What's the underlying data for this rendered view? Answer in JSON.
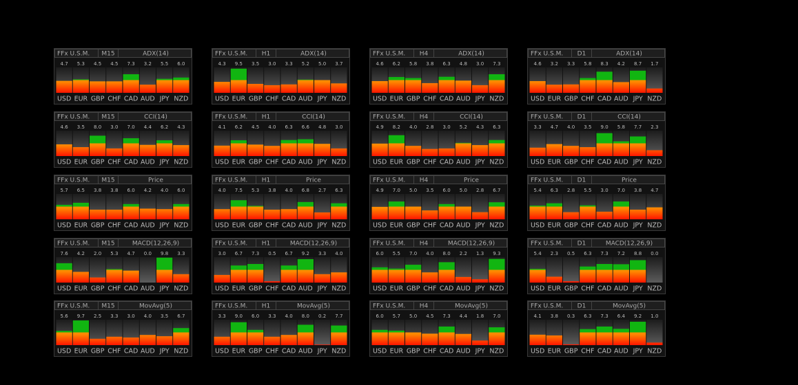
{
  "style": {
    "background": "#000000",
    "low_color": "#ff1500",
    "mid_color": "#ff8c00",
    "high_color": "#11b511"
  },
  "chart_data": [
    {
      "type": "bar",
      "title": "FFx U.S.M.",
      "timeframe": "M15",
      "indicator": "ADX(14)",
      "categories": [
        "USD",
        "EUR",
        "GBP",
        "CHF",
        "CAD",
        "AUD",
        "JPY",
        "NZD"
      ],
      "values": [
        4.7,
        5.3,
        4.5,
        4.5,
        7.3,
        3.2,
        5.5,
        6.0
      ],
      "value_labels": [
        "4.7",
        "5.3",
        "4.5",
        "4.5",
        "7.3",
        "3.2",
        "5.5",
        "6.0"
      ],
      "ylim": [
        0,
        10
      ]
    },
    {
      "type": "bar",
      "title": "FFx U.S.M.",
      "timeframe": "H1",
      "indicator": "ADX(14)",
      "categories": [
        "USD",
        "EUR",
        "GBP",
        "CHF",
        "CAD",
        "AUD",
        "JPY",
        "NZD"
      ],
      "values": [
        4.3,
        9.5,
        3.5,
        3.0,
        3.3,
        5.2,
        5.0,
        3.7
      ],
      "value_labels": [
        "4.3",
        "9.5",
        "3.5",
        "3.0",
        "3.3",
        "5.2",
        "5.0",
        "3.7"
      ],
      "ylim": [
        0,
        10
      ]
    },
    {
      "type": "bar",
      "title": "FFx U.S.M.",
      "timeframe": "H4",
      "indicator": "ADX(14)",
      "categories": [
        "USD",
        "EUR",
        "GBP",
        "CHF",
        "CAD",
        "AUD",
        "JPY",
        "NZD"
      ],
      "values": [
        4.6,
        6.2,
        5.8,
        3.8,
        6.3,
        4.8,
        3.0,
        7.3
      ],
      "value_labels": [
        "4.6",
        "6.2",
        "5.8",
        "3.8",
        "6.3",
        "4.8",
        "3.0",
        "7.3"
      ],
      "ylim": [
        0,
        10
      ]
    },
    {
      "type": "bar",
      "title": "FFx U.S.M.",
      "timeframe": "D1",
      "indicator": "ADX(14)",
      "categories": [
        "USD",
        "EUR",
        "GBP",
        "CHF",
        "CAD",
        "AUD",
        "JPY",
        "NZD"
      ],
      "values": [
        4.6,
        3.2,
        3.3,
        5.8,
        8.3,
        4.2,
        8.7,
        1.7
      ],
      "value_labels": [
        "4.6",
        "3.2",
        "3.3",
        "5.8",
        "8.3",
        "4.2",
        "8.7",
        "1.7"
      ],
      "ylim": [
        0,
        10
      ]
    },
    {
      "type": "bar",
      "title": "FFx U.S.M.",
      "timeframe": "M15",
      "indicator": "CCI(14)",
      "categories": [
        "USD",
        "EUR",
        "GBP",
        "CHF",
        "CAD",
        "AUD",
        "JPY",
        "NZD"
      ],
      "values": [
        4.6,
        3.5,
        8.0,
        3.0,
        7.0,
        4.4,
        6.2,
        4.3
      ],
      "value_labels": [
        "4.6",
        "3.5",
        "8.0",
        "3.0",
        "7.0",
        "4.4",
        "6.2",
        "4.3"
      ],
      "ylim": [
        0,
        10
      ]
    },
    {
      "type": "bar",
      "title": "FFx U.S.M.",
      "timeframe": "H1",
      "indicator": "CCI(14)",
      "categories": [
        "USD",
        "EUR",
        "GBP",
        "CHF",
        "CAD",
        "AUD",
        "JPY",
        "NZD"
      ],
      "values": [
        4.1,
        6.2,
        4.5,
        4.0,
        6.3,
        6.6,
        4.8,
        3.0
      ],
      "value_labels": [
        "4.1",
        "6.2",
        "4.5",
        "4.0",
        "6.3",
        "6.6",
        "4.8",
        "3.0"
      ],
      "ylim": [
        0,
        10
      ]
    },
    {
      "type": "bar",
      "title": "FFx U.S.M.",
      "timeframe": "H4",
      "indicator": "CCI(14)",
      "categories": [
        "USD",
        "EUR",
        "GBP",
        "CHF",
        "CAD",
        "AUD",
        "JPY",
        "NZD"
      ],
      "values": [
        4.9,
        8.2,
        4.0,
        2.8,
        3.0,
        5.2,
        4.3,
        6.3
      ],
      "value_labels": [
        "4.9",
        "8.2",
        "4.0",
        "2.8",
        "3.0",
        "5.2",
        "4.3",
        "6.3"
      ],
      "ylim": [
        0,
        10
      ]
    },
    {
      "type": "bar",
      "title": "FFx U.S.M.",
      "timeframe": "D1",
      "indicator": "CCI(14)",
      "categories": [
        "USD",
        "EUR",
        "GBP",
        "CHF",
        "CAD",
        "AUD",
        "JPY",
        "NZD"
      ],
      "values": [
        3.3,
        4.7,
        4.0,
        3.5,
        9.0,
        5.8,
        7.7,
        2.3
      ],
      "value_labels": [
        "3.3",
        "4.7",
        "4.0",
        "3.5",
        "9.0",
        "5.8",
        "7.7",
        "2.3"
      ],
      "ylim": [
        0,
        10
      ]
    },
    {
      "type": "bar",
      "title": "FFx U.S.M.",
      "timeframe": "M15",
      "indicator": "Price",
      "categories": [
        "USD",
        "EUR",
        "GBP",
        "CHF",
        "CAD",
        "AUD",
        "JPY",
        "NZD"
      ],
      "values": [
        5.7,
        6.5,
        3.8,
        3.8,
        6.0,
        4.2,
        4.0,
        6.0
      ],
      "value_labels": [
        "5.7",
        "6.5",
        "3.8",
        "3.8",
        "6.0",
        "4.2",
        "4.0",
        "6.0"
      ],
      "ylim": [
        0,
        10
      ]
    },
    {
      "type": "bar",
      "title": "FFx U.S.M.",
      "timeframe": "H1",
      "indicator": "Price",
      "categories": [
        "USD",
        "EUR",
        "GBP",
        "CHF",
        "CAD",
        "AUD",
        "JPY",
        "NZD"
      ],
      "values": [
        4.0,
        7.5,
        5.3,
        3.8,
        4.0,
        6.8,
        2.7,
        6.3
      ],
      "value_labels": [
        "4.0",
        "7.5",
        "5.3",
        "3.8",
        "4.0",
        "6.8",
        "2.7",
        "6.3"
      ],
      "ylim": [
        0,
        10
      ]
    },
    {
      "type": "bar",
      "title": "FFx U.S.M.",
      "timeframe": "H4",
      "indicator": "Price",
      "categories": [
        "USD",
        "EUR",
        "GBP",
        "CHF",
        "CAD",
        "AUD",
        "JPY",
        "NZD"
      ],
      "values": [
        4.9,
        7.0,
        5.0,
        3.5,
        6.0,
        5.0,
        2.8,
        6.7
      ],
      "value_labels": [
        "4.9",
        "7.0",
        "5.0",
        "3.5",
        "6.0",
        "5.0",
        "2.8",
        "6.7"
      ],
      "ylim": [
        0,
        10
      ]
    },
    {
      "type": "bar",
      "title": "FFx U.S.M.",
      "timeframe": "D1",
      "indicator": "Price",
      "categories": [
        "USD",
        "EUR",
        "GBP",
        "CHF",
        "CAD",
        "AUD",
        "JPY",
        "NZD"
      ],
      "values": [
        5.4,
        6.3,
        2.8,
        5.5,
        3.0,
        7.0,
        3.8,
        4.7
      ],
      "value_labels": [
        "5.4",
        "6.3",
        "2.8",
        "5.5",
        "3.0",
        "7.0",
        "3.8",
        "4.7"
      ],
      "ylim": [
        0,
        10
      ]
    },
    {
      "type": "bar",
      "title": "FFx U.S.M.",
      "timeframe": "M15",
      "indicator": "MACD(12,26,9)",
      "categories": [
        "USD",
        "EUR",
        "GBP",
        "CHF",
        "CAD",
        "AUD",
        "JPY",
        "NZD"
      ],
      "values": [
        7.6,
        4.2,
        2.0,
        5.3,
        4.7,
        0.0,
        9.8,
        3.3
      ],
      "value_labels": [
        "7.6",
        "4.2",
        "2.0",
        "5.3",
        "4.7",
        "0.0",
        "9.8",
        "3.3"
      ],
      "ylim": [
        0,
        10
      ]
    },
    {
      "type": "bar",
      "title": "FFx U.S.M.",
      "timeframe": "H1",
      "indicator": "MACD(12,26,9)",
      "categories": [
        "USD",
        "EUR",
        "GBP",
        "CHF",
        "CAD",
        "AUD",
        "JPY",
        "NZD"
      ],
      "values": [
        3.0,
        6.7,
        7.3,
        0.5,
        6.7,
        9.2,
        3.3,
        4.0
      ],
      "value_labels": [
        "3.0",
        "6.7",
        "7.3",
        "0.5",
        "6.7",
        "9.2",
        "3.3",
        "4.0"
      ],
      "ylim": [
        0,
        10
      ]
    },
    {
      "type": "bar",
      "title": "FFx U.S.M.",
      "timeframe": "H4",
      "indicator": "MACD(12,26,9)",
      "categories": [
        "USD",
        "EUR",
        "GBP",
        "CHF",
        "CAD",
        "AUD",
        "JPY",
        "NZD"
      ],
      "values": [
        6.0,
        5.5,
        7.0,
        4.0,
        8.0,
        2.2,
        1.3,
        9.3
      ],
      "value_labels": [
        "6.0",
        "5.5",
        "7.0",
        "4.0",
        "8.0",
        "2.2",
        "1.3",
        "9.3"
      ],
      "ylim": [
        0,
        10
      ]
    },
    {
      "type": "bar",
      "title": "FFx U.S.M.",
      "timeframe": "D1",
      "indicator": "MACD(12,26,9)",
      "categories": [
        "USD",
        "EUR",
        "GBP",
        "CHF",
        "CAD",
        "AUD",
        "JPY",
        "NZD"
      ],
      "values": [
        5.4,
        2.3,
        0.5,
        6.3,
        7.3,
        7.2,
        8.8,
        0.0
      ],
      "value_labels": [
        "5.4",
        "2.3",
        "0.5",
        "6.3",
        "7.3",
        "7.2",
        "8.8",
        "0.0"
      ],
      "ylim": [
        0,
        10
      ]
    },
    {
      "type": "bar",
      "title": "FFx U.S.M.",
      "timeframe": "M15",
      "indicator": "MovAvg(5)",
      "categories": [
        "USD",
        "EUR",
        "GBP",
        "CHF",
        "CAD",
        "AUD",
        "JPY",
        "NZD"
      ],
      "values": [
        5.6,
        9.7,
        2.5,
        3.3,
        3.0,
        4.0,
        3.5,
        6.7
      ],
      "value_labels": [
        "5.6",
        "9.7",
        "2.5",
        "3.3",
        "3.0",
        "4.0",
        "3.5",
        "6.7"
      ],
      "ylim": [
        0,
        10
      ]
    },
    {
      "type": "bar",
      "title": "FFx U.S.M.",
      "timeframe": "H1",
      "indicator": "MovAvg(5)",
      "categories": [
        "USD",
        "EUR",
        "GBP",
        "CHF",
        "CAD",
        "AUD",
        "JPY",
        "NZD"
      ],
      "values": [
        3.3,
        9.0,
        6.0,
        3.3,
        4.0,
        8.0,
        0.2,
        7.7
      ],
      "value_labels": [
        "3.3",
        "9.0",
        "6.0",
        "3.3",
        "4.0",
        "8.0",
        "0.2",
        "7.7"
      ],
      "ylim": [
        0,
        10
      ]
    },
    {
      "type": "bar",
      "title": "FFx U.S.M.",
      "timeframe": "H4",
      "indicator": "MovAvg(5)",
      "categories": [
        "USD",
        "EUR",
        "GBP",
        "CHF",
        "CAD",
        "AUD",
        "JPY",
        "NZD"
      ],
      "values": [
        6.0,
        5.7,
        5.0,
        4.5,
        7.3,
        4.4,
        1.8,
        7.0
      ],
      "value_labels": [
        "6.0",
        "5.7",
        "5.0",
        "4.5",
        "7.3",
        "4.4",
        "1.8",
        "7.0"
      ],
      "ylim": [
        0,
        10
      ]
    },
    {
      "type": "bar",
      "title": "FFx U.S.M.",
      "timeframe": "D1",
      "indicator": "MovAvg(5)",
      "categories": [
        "USD",
        "EUR",
        "GBP",
        "CHF",
        "CAD",
        "AUD",
        "JPY",
        "NZD"
      ],
      "values": [
        4.1,
        3.8,
        0.3,
        6.3,
        7.3,
        6.4,
        9.2,
        1.0
      ],
      "value_labels": [
        "4.1",
        "3.8",
        "0.3",
        "6.3",
        "7.3",
        "6.4",
        "9.2",
        "1.0"
      ],
      "ylim": [
        0,
        10
      ]
    }
  ]
}
